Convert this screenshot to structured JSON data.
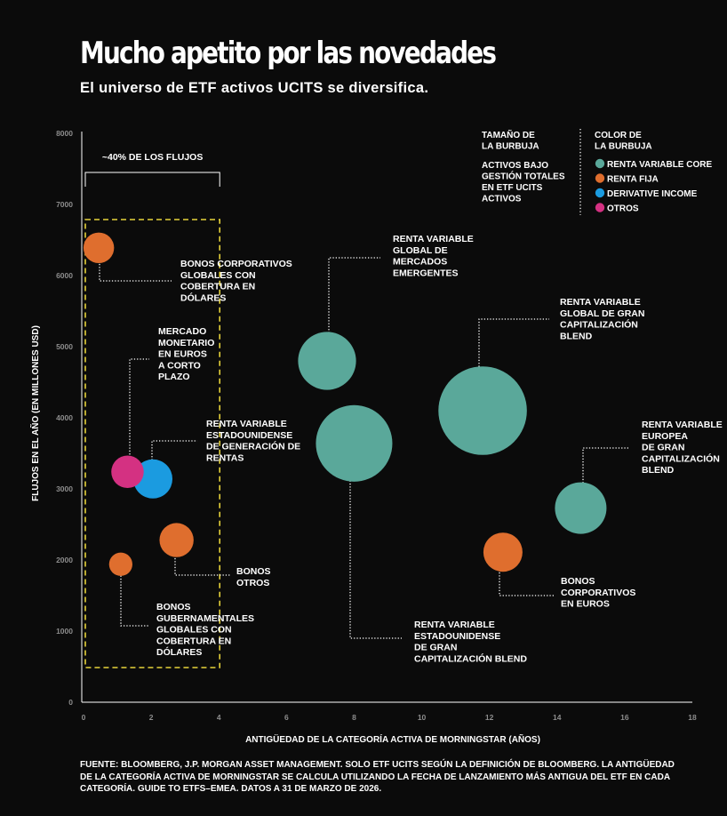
{
  "title": "Mucho apetito por las novedades",
  "subtitle": "El universo de ETF activos UCITS se diversifica.",
  "source_lines": [
    "FUENTE: BLOOMBERG, J.P. MORGAN ASSET MANAGEMENT. SOLO ETF UCITS SEGÚN LA DEFINICIÓN DE BLOOMBERG. LA ANTIGÜEDAD",
    "DE LA CATEGORÍA ACTIVA DE MORNINGSTAR SE CALCULA UTILIZANDO LA FECHA DE LANZAMIENTO MÁS ANTIGUA DEL ETF EN CADA",
    "CATEGORÍA. GUIDE TO ETFS–EMEA. DATOS A 31 DE MARZO DE 2026."
  ],
  "colors": {
    "background": "#0b0b0b",
    "renta_variable_core": "#5aa89a",
    "renta_fija": "#df6e2e",
    "derivative_income": "#1b9be0",
    "otros": "#d43182",
    "highlight_box": "#e6d33a",
    "axis_tick_labels": "#8d8d8d"
  },
  "legend": {
    "size_heading": [
      "TAMAÑO DE",
      "LA BURBUJA"
    ],
    "size_description": [
      "ACTIVOS BAJO",
      "GESTIÓN TOTALES",
      "EN ETF UCITS",
      "ACTIVOS"
    ],
    "color_heading": [
      "COLOR DE",
      "LA BURBUJA"
    ],
    "items": [
      {
        "label": "RENTA VARIABLE CORE",
        "color": "#5aa89a"
      },
      {
        "label": "RENTA FIJA",
        "color": "#df6e2e"
      },
      {
        "label": "DERIVATIVE INCOME",
        "color": "#1b9be0"
      },
      {
        "label": "OTROS",
        "color": "#d43182"
      }
    ]
  },
  "chart_data": {
    "type": "scatter",
    "subtype": "bubble",
    "title": "Mucho apetito por las novedades",
    "subtitle": "El universo de ETF activos UCITS se diversifica.",
    "xlabel": "ANTIGÜEDAD DE LA CATEGORÍA ACTIVA DE MORNINGSTAR (AÑOS)",
    "ylabel": "FLUJOS EN EL AÑO (EN MILLONES USD)",
    "xlim": [
      0,
      18
    ],
    "ylim": [
      0,
      8000
    ],
    "x_ticks": [
      "0",
      "2",
      "4",
      "6",
      "8",
      "10",
      "12",
      "14",
      "16",
      "18"
    ],
    "y_ticks": [
      "0",
      "1000",
      "2000",
      "3000",
      "4000",
      "5000",
      "6000",
      "7000",
      "8000"
    ],
    "grid": false,
    "bracket_label": "~40% DE LOS FLUJOS",
    "bracket_x_range": [
      0,
      4
    ],
    "highlight_x_range": [
      0,
      4
    ],
    "highlight_y_range": [
      500,
      6800
    ],
    "series": [
      {
        "name": "RENTA VARIABLE CORE",
        "color": "#5aa89a",
        "points": [
          {
            "label": [
              "RENTA VARIABLE",
              "GLOBAL DE",
              "MERCADOS",
              "EMERGENTES"
            ],
            "x": 7.2,
            "y": 4800,
            "size": 3
          },
          {
            "label": [
              "RENTA VARIABLE",
              "ESTADOUNIDENSE",
              "DE GRAN",
              "CAPITALIZACIÓN BLEND"
            ],
            "x": 8.0,
            "y": 3640,
            "size": 6
          },
          {
            "label": [
              "RENTA VARIABLE",
              "GLOBAL DE GRAN",
              "CAPITALIZACIÓN",
              "BLEND"
            ],
            "x": 11.8,
            "y": 4100,
            "size": 8.5
          },
          {
            "label": [
              "RENTA VARIABLE",
              "EUROPEA",
              "DE GRAN",
              "CAPITALIZACIÓN",
              "BLEND"
            ],
            "x": 14.7,
            "y": 2730,
            "size": 2.2
          }
        ]
      },
      {
        "name": "RENTA FIJA",
        "color": "#df6e2e",
        "points": [
          {
            "label": [
              "BONOS CORPORATIVOS",
              "GLOBALES CON",
              "COBERTURA EN",
              "DÓLARES"
            ],
            "x": 0.45,
            "y": 6390,
            "size": 0.45
          },
          {
            "label": [
              "BONOS",
              "OTROS"
            ],
            "x": 2.75,
            "y": 2280,
            "size": 0.65
          },
          {
            "label": [
              "BONOS",
              "GUBERNAMENTALES",
              "GLOBALES CON",
              "COBERTURA EN",
              "DÓLARES"
            ],
            "x": 1.1,
            "y": 1940,
            "size": 0.15
          },
          {
            "label": [
              "BONOS",
              "CORPORATIVOS",
              "EN EUROS"
            ],
            "x": 12.4,
            "y": 2110,
            "size": 1.0
          }
        ]
      },
      {
        "name": "DERIVATIVE INCOME",
        "color": "#1b9be0",
        "points": [
          {
            "label": [
              "RENTA VARIABLE",
              "ESTADOUNIDENSE",
              "DE GENERACIÓN DE",
              "RENTAS"
            ],
            "x": 2.05,
            "y": 3140,
            "size": 1.0
          }
        ]
      },
      {
        "name": "OTROS",
        "color": "#d43182",
        "points": [
          {
            "label": [
              "MERCADO",
              "MONETARIO",
              "EN EUROS",
              "A CORTO",
              "PLAZO"
            ],
            "x": 1.3,
            "y": 3240,
            "size": 0.55
          }
        ]
      }
    ]
  }
}
